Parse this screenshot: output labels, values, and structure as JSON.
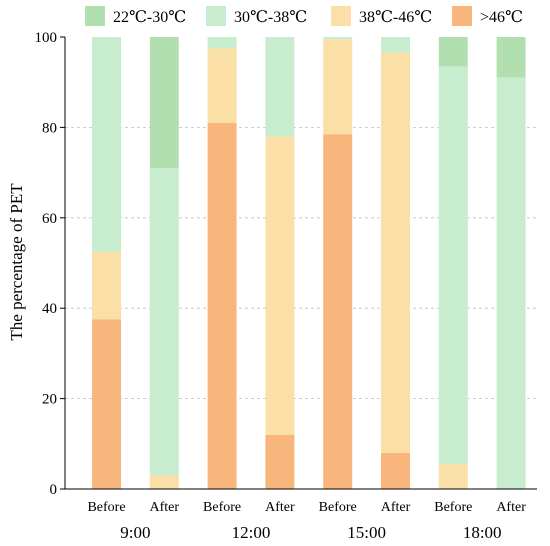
{
  "chart_data": {
    "type": "bar",
    "stacked": true,
    "orientation": "vertical",
    "ylabel": "The percentage of PET",
    "ylim": [
      0,
      100
    ],
    "yticks": [
      0,
      20,
      40,
      60,
      80,
      100
    ],
    "grid": "horizontal dashed",
    "legend_position": "top",
    "categories": [
      "Before",
      "After",
      "Before",
      "After",
      "Before",
      "After",
      "Before",
      "After"
    ],
    "groups": [
      {
        "label": "9:00"
      },
      {
        "label": "12:00"
      },
      {
        "label": "15:00"
      },
      {
        "label": "18:00"
      }
    ],
    "series": [
      {
        "name": "22℃-30℃",
        "color": "#b2dfb0",
        "values": [
          0,
          29,
          0,
          0,
          0,
          0,
          6.5,
          9
        ]
      },
      {
        "name": "30℃-38℃",
        "color": "#c8ecce",
        "values": [
          47.5,
          68,
          2.5,
          22,
          0.5,
          3.5,
          88,
          91
        ]
      },
      {
        "name": "38℃-46℃",
        "color": "#fadfa6",
        "values": [
          15,
          3,
          16.5,
          66,
          21,
          88.5,
          5.5,
          0
        ]
      },
      {
        "name": ">46℃",
        "color": "#f9b67c",
        "values": [
          37.5,
          0,
          81,
          12,
          78.5,
          8,
          0,
          0
        ]
      }
    ]
  }
}
